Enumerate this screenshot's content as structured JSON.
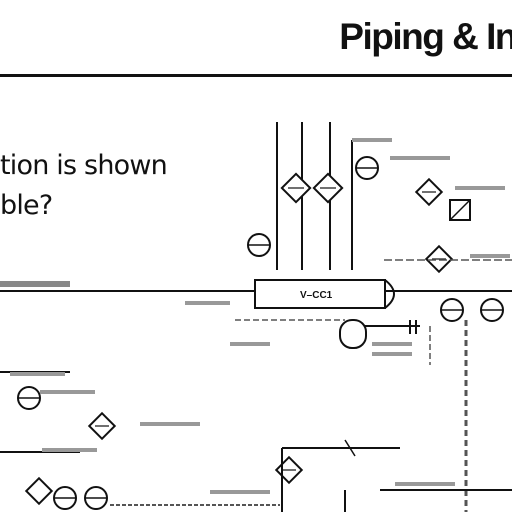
{
  "slide": {
    "title": "Piping & In",
    "question": {
      "line1": "tion is shown",
      "line2": "ble?"
    }
  },
  "diagram": {
    "vessel_tag": "V–CC1"
  }
}
